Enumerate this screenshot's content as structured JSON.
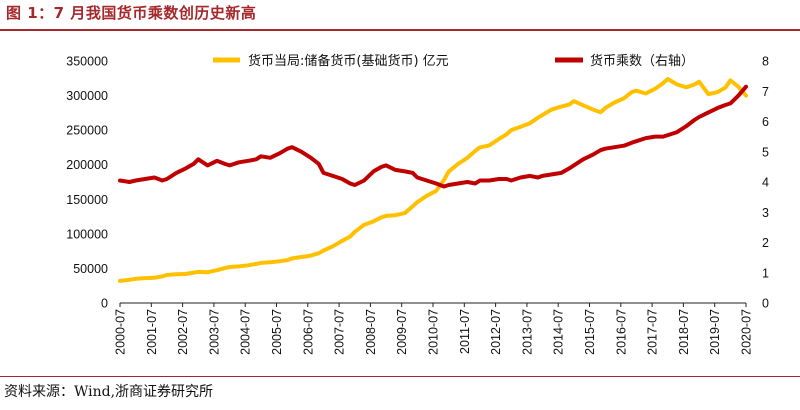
{
  "figure_title": "图 1：7 月我国货币乘数创历史新高",
  "source": "资料来源：Wind,浙商证券研究所",
  "chart_data": {
    "type": "line",
    "title": "图 1：7 月我国货币乘数创历史新高",
    "x_tick_labels": [
      "2000-07",
      "2001-07",
      "2002-07",
      "2003-07",
      "2004-07",
      "2005-07",
      "2006-07",
      "2007-07",
      "2008-07",
      "2009-07",
      "2010-07",
      "2011-07",
      "2012-07",
      "2013-07",
      "2014-07",
      "2015-07",
      "2016-07",
      "2017-07",
      "2018-07",
      "2019-07",
      "2020-07"
    ],
    "x_range": [
      2000.5,
      2020.5
    ],
    "left_axis": {
      "min": 0,
      "max": 350000,
      "ticks": [
        "0",
        "50000",
        "100000",
        "150000",
        "200000",
        "250000",
        "300000",
        "350000"
      ]
    },
    "right_axis": {
      "min": 0,
      "max": 8,
      "ticks": [
        "0",
        "1",
        "2",
        "3",
        "4",
        "5",
        "6",
        "7",
        "8"
      ]
    },
    "series": [
      {
        "name": "货币当局:储备货币(基础货币) 亿元",
        "axis": "left",
        "color": "#ffc000",
        "points": [
          [
            2000.5,
            32000
          ],
          [
            2000.8,
            33500
          ],
          [
            2001.0,
            35000
          ],
          [
            2001.3,
            36000
          ],
          [
            2001.6,
            36500
          ],
          [
            2001.85,
            38500
          ],
          [
            2002.0,
            40500
          ],
          [
            2002.3,
            41500
          ],
          [
            2002.6,
            42000
          ],
          [
            2002.85,
            44000
          ],
          [
            2003.0,
            45000
          ],
          [
            2003.3,
            44500
          ],
          [
            2003.6,
            47500
          ],
          [
            2003.85,
            50500
          ],
          [
            2004.0,
            52000
          ],
          [
            2004.3,
            53000
          ],
          [
            2004.6,
            54500
          ],
          [
            2004.85,
            56500
          ],
          [
            2005.0,
            58000
          ],
          [
            2005.3,
            59000
          ],
          [
            2005.6,
            60500
          ],
          [
            2005.85,
            62000
          ],
          [
            2006.0,
            64500
          ],
          [
            2006.3,
            66500
          ],
          [
            2006.6,
            68500
          ],
          [
            2006.85,
            72000
          ],
          [
            2007.0,
            76000
          ],
          [
            2007.3,
            82000
          ],
          [
            2007.6,
            90000
          ],
          [
            2007.85,
            96000
          ],
          [
            2008.0,
            103000
          ],
          [
            2008.3,
            113000
          ],
          [
            2008.6,
            118000
          ],
          [
            2008.85,
            124000
          ],
          [
            2009.0,
            126000
          ],
          [
            2009.3,
            127000
          ],
          [
            2009.6,
            130000
          ],
          [
            2009.85,
            140000
          ],
          [
            2010.0,
            146000
          ],
          [
            2010.3,
            155000
          ],
          [
            2010.6,
            162000
          ],
          [
            2010.85,
            178000
          ],
          [
            2011.0,
            190000
          ],
          [
            2011.3,
            201000
          ],
          [
            2011.6,
            210000
          ],
          [
            2011.85,
            220000
          ],
          [
            2012.0,
            225000
          ],
          [
            2012.3,
            228000
          ],
          [
            2012.6,
            237000
          ],
          [
            2012.85,
            244000
          ],
          [
            2013.0,
            250000
          ],
          [
            2013.3,
            255000
          ],
          [
            2013.6,
            260000
          ],
          [
            2013.85,
            268000
          ],
          [
            2014.0,
            272000
          ],
          [
            2014.3,
            280000
          ],
          [
            2014.6,
            284000
          ],
          [
            2014.85,
            287000
          ],
          [
            2015.0,
            292000
          ],
          [
            2015.3,
            286000
          ],
          [
            2015.6,
            280000
          ],
          [
            2015.85,
            276000
          ],
          [
            2016.0,
            282000
          ],
          [
            2016.3,
            290000
          ],
          [
            2016.6,
            296000
          ],
          [
            2016.85,
            305000
          ],
          [
            2017.0,
            307000
          ],
          [
            2017.3,
            303000
          ],
          [
            2017.6,
            310000
          ],
          [
            2017.85,
            318000
          ],
          [
            2018.0,
            324000
          ],
          [
            2018.3,
            316000
          ],
          [
            2018.6,
            312000
          ],
          [
            2018.85,
            316000
          ],
          [
            2019.0,
            320000
          ],
          [
            2019.3,
            302000
          ],
          [
            2019.6,
            305000
          ],
          [
            2019.85,
            312000
          ],
          [
            2020.0,
            322000
          ],
          [
            2020.25,
            313000
          ],
          [
            2020.5,
            300000
          ]
        ]
      },
      {
        "name": "货币乘数（右轴）",
        "axis": "right",
        "color": "#c00000",
        "points": [
          [
            2000.5,
            4.05
          ],
          [
            2000.8,
            4.0
          ],
          [
            2001.0,
            4.05
          ],
          [
            2001.3,
            4.1
          ],
          [
            2001.6,
            4.15
          ],
          [
            2001.85,
            4.05
          ],
          [
            2002.0,
            4.1
          ],
          [
            2002.3,
            4.3
          ],
          [
            2002.6,
            4.45
          ],
          [
            2002.85,
            4.6
          ],
          [
            2003.0,
            4.75
          ],
          [
            2003.3,
            4.55
          ],
          [
            2003.6,
            4.7
          ],
          [
            2003.85,
            4.6
          ],
          [
            2004.0,
            4.55
          ],
          [
            2004.3,
            4.65
          ],
          [
            2004.6,
            4.7
          ],
          [
            2004.85,
            4.75
          ],
          [
            2005.0,
            4.85
          ],
          [
            2005.3,
            4.8
          ],
          [
            2005.6,
            4.95
          ],
          [
            2005.85,
            5.1
          ],
          [
            2006.0,
            5.15
          ],
          [
            2006.3,
            5.0
          ],
          [
            2006.6,
            4.8
          ],
          [
            2006.85,
            4.6
          ],
          [
            2007.0,
            4.3
          ],
          [
            2007.3,
            4.2
          ],
          [
            2007.6,
            4.1
          ],
          [
            2007.85,
            3.95
          ],
          [
            2008.0,
            3.9
          ],
          [
            2008.3,
            4.05
          ],
          [
            2008.6,
            4.35
          ],
          [
            2008.85,
            4.5
          ],
          [
            2009.0,
            4.55
          ],
          [
            2009.3,
            4.4
          ],
          [
            2009.6,
            4.35
          ],
          [
            2009.85,
            4.3
          ],
          [
            2010.0,
            4.15
          ],
          [
            2010.3,
            4.05
          ],
          [
            2010.6,
            3.95
          ],
          [
            2010.85,
            3.85
          ],
          [
            2011.0,
            3.9
          ],
          [
            2011.3,
            3.95
          ],
          [
            2011.6,
            4.0
          ],
          [
            2011.85,
            3.95
          ],
          [
            2012.0,
            4.05
          ],
          [
            2012.3,
            4.05
          ],
          [
            2012.6,
            4.1
          ],
          [
            2012.85,
            4.1
          ],
          [
            2013.0,
            4.05
          ],
          [
            2013.3,
            4.15
          ],
          [
            2013.6,
            4.2
          ],
          [
            2013.85,
            4.15
          ],
          [
            2014.0,
            4.2
          ],
          [
            2014.3,
            4.25
          ],
          [
            2014.6,
            4.3
          ],
          [
            2014.85,
            4.45
          ],
          [
            2015.0,
            4.55
          ],
          [
            2015.3,
            4.75
          ],
          [
            2015.6,
            4.9
          ],
          [
            2015.85,
            5.05
          ],
          [
            2016.0,
            5.1
          ],
          [
            2016.3,
            5.15
          ],
          [
            2016.6,
            5.2
          ],
          [
            2016.85,
            5.3
          ],
          [
            2017.0,
            5.35
          ],
          [
            2017.3,
            5.45
          ],
          [
            2017.6,
            5.5
          ],
          [
            2017.85,
            5.5
          ],
          [
            2018.0,
            5.55
          ],
          [
            2018.3,
            5.65
          ],
          [
            2018.6,
            5.85
          ],
          [
            2018.85,
            6.05
          ],
          [
            2019.0,
            6.15
          ],
          [
            2019.3,
            6.3
          ],
          [
            2019.6,
            6.45
          ],
          [
            2019.85,
            6.55
          ],
          [
            2020.0,
            6.6
          ],
          [
            2020.25,
            6.85
          ],
          [
            2020.5,
            7.15
          ]
        ]
      }
    ]
  }
}
